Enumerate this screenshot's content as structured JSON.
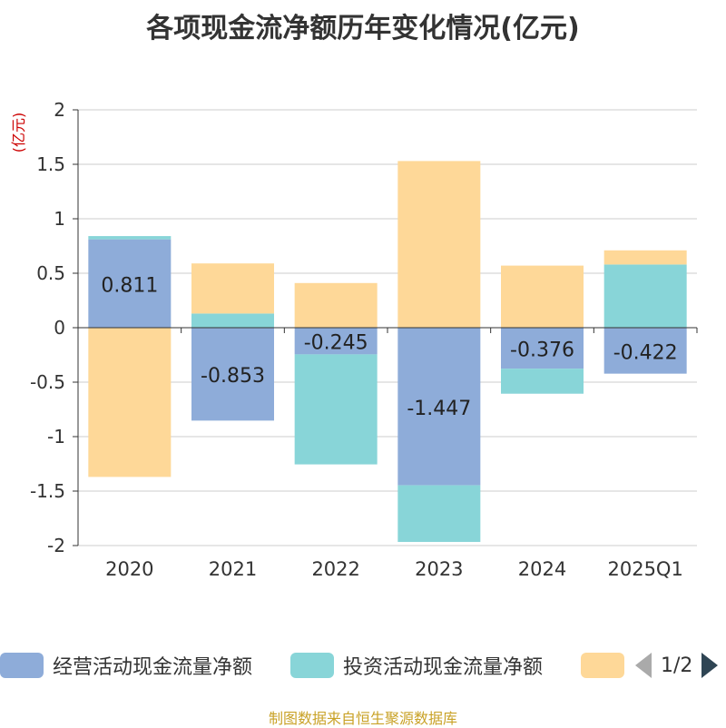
{
  "chart_data": {
    "type": "bar",
    "stacked": true,
    "title": "各项现金流净额历年变化情况(亿元)",
    "ylabel": "(亿元)",
    "ylim": [
      -2,
      2
    ],
    "yticks": [
      2,
      1.5,
      1,
      0.5,
      0,
      -0.5,
      -1,
      -1.5,
      -2
    ],
    "ytick_labels": [
      "2",
      "1.5",
      "1",
      "0.5",
      "0",
      "-0.5",
      "-1",
      "-1.5",
      "-2"
    ],
    "grid": true,
    "categories": [
      "2020",
      "2021",
      "2022",
      "2023",
      "2024",
      "2025Q1"
    ],
    "series": [
      {
        "name": "经营活动现金流量净额",
        "color": "#8eacd9",
        "values": [
          0.811,
          -0.853,
          -0.245,
          -1.447,
          -0.376,
          -0.422
        ],
        "labeled": true
      },
      {
        "name": "投资活动现金流量净额",
        "color": "#88d5d8",
        "values": [
          0.03,
          0.13,
          -1.01,
          -0.52,
          -0.23,
          0.58
        ],
        "labeled": false
      },
      {
        "name": "",
        "color": "#fed898",
        "values": [
          -1.37,
          0.46,
          0.41,
          1.53,
          0.57,
          0.13
        ],
        "labeled": false
      }
    ],
    "data_labels": [
      "0.811",
      "-0.853",
      "-0.245",
      "-1.447",
      "-0.376",
      "-0.422"
    ]
  },
  "legend": {
    "items": [
      {
        "label": "经营活动现金流量净额",
        "color": "#8eacd9"
      },
      {
        "label": "投资活动现金流量净额",
        "color": "#88d5d8"
      },
      {
        "label": "",
        "color": "#fed898"
      }
    ],
    "page_indicator": "1/2"
  },
  "footer": {
    "source": "制图数据来自恒生聚源数据库"
  }
}
